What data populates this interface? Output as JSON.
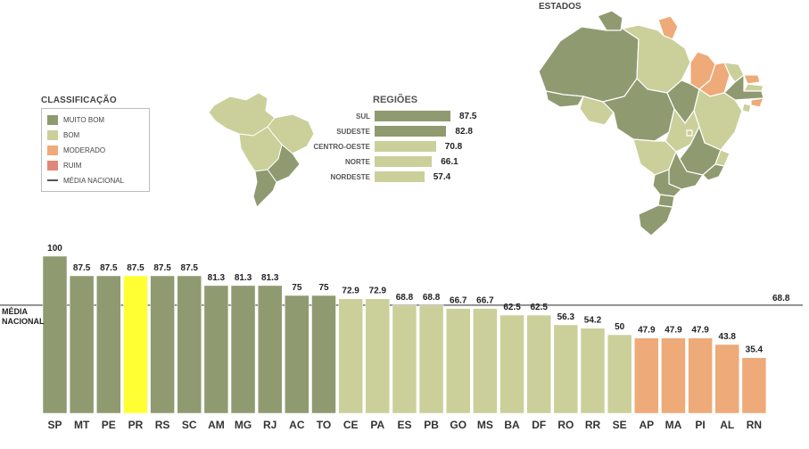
{
  "legend": {
    "title": "CLASSIFICAÇÃO",
    "items": [
      {
        "label": "MUITO BOM",
        "color": "#8f9a70"
      },
      {
        "label": "BOM",
        "color": "#cbd09a"
      },
      {
        "label": "MODERADO",
        "color": "#eeaa78"
      },
      {
        "label": "RUIM",
        "color": "#e08878"
      }
    ],
    "media_label": "MÉDIA NACIONAL"
  },
  "regions": {
    "title": "REGIÕES",
    "items": [
      {
        "label": "SUL",
        "value": 87.5,
        "display": "87.5",
        "color": "#8f9a70"
      },
      {
        "label": "SUDESTE",
        "value": 82.8,
        "display": "82.8",
        "color": "#8f9a70"
      },
      {
        "label": "CENTRO-OESTE",
        "value": 70.8,
        "display": "70.8",
        "color": "#cbd09a"
      },
      {
        "label": "NORTE",
        "value": 66.1,
        "display": "66.1",
        "color": "#cbd09a"
      },
      {
        "label": "NORDESTE",
        "value": 57.4,
        "display": "57.4",
        "color": "#cbd09a"
      }
    ]
  },
  "states_map": {
    "title": "ESTADOS"
  },
  "national_average": {
    "label_line1": "MÉDIA",
    "label_line2": "NACIONAL",
    "value": 68.8,
    "display": "68.8"
  },
  "chart_data": {
    "type": "bar",
    "title": "",
    "categories": [
      "SP",
      "MT",
      "PE",
      "PR",
      "RS",
      "SC",
      "AM",
      "MG",
      "RJ",
      "AC",
      "TO",
      "CE",
      "PA",
      "ES",
      "PB",
      "GO",
      "MS",
      "BA",
      "DF",
      "RO",
      "RR",
      "SE",
      "AP",
      "MA",
      "PI",
      "AL",
      "RN"
    ],
    "values": [
      100,
      87.5,
      87.5,
      87.5,
      87.5,
      87.5,
      81.3,
      81.3,
      81.3,
      75,
      75,
      72.9,
      72.9,
      68.8,
      68.8,
      66.7,
      66.7,
      62.5,
      62.5,
      56.3,
      54.2,
      50,
      47.9,
      47.9,
      47.9,
      43.8,
      35.4
    ],
    "labels": [
      "100",
      "87.5",
      "87.5",
      "87.5",
      "87.5",
      "87.5",
      "81.3",
      "81.3",
      "81.3",
      "75",
      "75",
      "72.9",
      "72.9",
      "68.8",
      "68.8",
      "66.7",
      "66.7",
      "62.5",
      "62.5",
      "56.3",
      "54.2",
      "50",
      "47.9",
      "47.9",
      "47.9",
      "43.8",
      "35.4"
    ],
    "classes": [
      "muito_bom",
      "muito_bom",
      "muito_bom",
      "highlight",
      "muito_bom",
      "muito_bom",
      "muito_bom",
      "muito_bom",
      "muito_bom",
      "muito_bom",
      "muito_bom",
      "bom",
      "bom",
      "bom",
      "bom",
      "bom",
      "bom",
      "bom",
      "bom",
      "bom",
      "bom",
      "bom",
      "moderado",
      "moderado",
      "moderado",
      "moderado",
      "moderado"
    ],
    "colors": {
      "muito_bom": "#8f9a70",
      "bom": "#cbd09a",
      "moderado": "#eeaa78",
      "highlight": "#ffff33"
    },
    "ylim": [
      0,
      100
    ],
    "average_line": 68.8
  }
}
